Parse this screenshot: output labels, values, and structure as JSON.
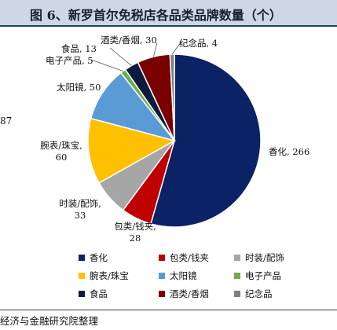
{
  "header": {
    "title": "图 6、新罗首尔免税店各品类品牌数量（个）"
  },
  "fragment_left": "87",
  "footer": {
    "source": "经济与金融研究院整理"
  },
  "chart_data": {
    "type": "pie",
    "title": "图 6、新罗首尔免税店各品类品牌数量（个）",
    "categories": [
      "香化",
      "包类/钱夹",
      "时装/配饰",
      "腕表/珠宝",
      "太阳镜",
      "电子产品",
      "食品",
      "酒类/香烟",
      "纪念品"
    ],
    "values": [
      266,
      28,
      33,
      60,
      50,
      5,
      13,
      30,
      4
    ],
    "colors": [
      "#0b2264",
      "#c00000",
      "#a6a6a6",
      "#ffc000",
      "#5b9bd5",
      "#70ad47",
      "#0d1b3e",
      "#7b0000",
      "#7f7f7f"
    ],
    "data_labels": [
      "香化, 266",
      "包类/钱夹, 28",
      "时装/配饰, 33",
      "腕表/珠宝, 60",
      "太阳镜, 50",
      "电子产品, 5",
      "食品, 13",
      "酒类/香烟, 30",
      "纪念品, 4"
    ],
    "legend": {
      "placement": "bottom",
      "entries": [
        "香化",
        "包类/钱夹",
        "时装/配饰",
        "腕表/珠宝",
        "太阳镜",
        "电子产品",
        "食品",
        "酒类/香烟",
        "纪念品"
      ]
    }
  }
}
